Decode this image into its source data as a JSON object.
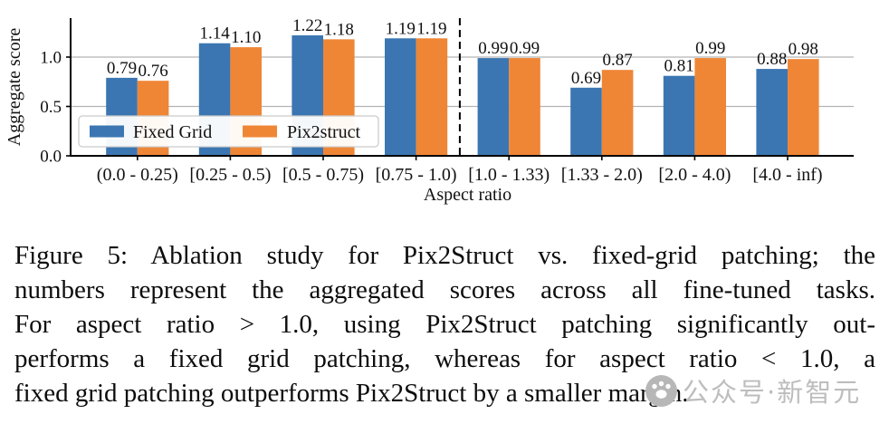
{
  "figure": {
    "caption_lines": [
      "Figure 5: Ablation study for Pix2Struct vs. fixed-grid patching; the",
      "numbers represent the aggregated scores across all fine-tuned tasks.",
      "For aspect ratio > 1.0, using Pix2Struct patching significantly out-",
      "performs a fixed grid patching, whereas for aspect ratio < 1.0, a",
      "fixed grid patching outperforms Pix2Struct by a smaller margin."
    ]
  },
  "watermark": {
    "text": "公众号·新智元",
    "color": "#bdbdbd",
    "logo": "paw-circle-logo"
  },
  "chart_data": {
    "type": "bar",
    "title": "",
    "xlabel": "Aspect ratio",
    "ylabel": "Aggregate score",
    "categories": [
      "(0.0 - 0.25)",
      "[0.25 - 0.5)",
      "[0.5 - 0.75)",
      "[0.75 - 1.0)",
      "[1.0 - 1.33)",
      "[1.33 - 2.0)",
      "[2.0 - 4.0)",
      "[4.0 - inf)"
    ],
    "series": [
      {
        "name": "Fixed Grid",
        "color": "#3B76B2",
        "values": [
          0.79,
          1.14,
          1.22,
          1.19,
          0.99,
          0.69,
          0.81,
          0.88
        ]
      },
      {
        "name": "Pix2struct",
        "color": "#EF8636",
        "values": [
          0.76,
          1.1,
          1.18,
          1.19,
          0.99,
          0.87,
          0.99,
          0.98
        ]
      }
    ],
    "yticks": [
      0.0,
      0.5,
      1.0
    ],
    "ylim": [
      0,
      1.4
    ],
    "grid": "horizontal",
    "gridline_color": "#b3b3b3",
    "legend_position": "lower left inside",
    "divider_after_category_index": 3,
    "bar_value_labels": true
  }
}
